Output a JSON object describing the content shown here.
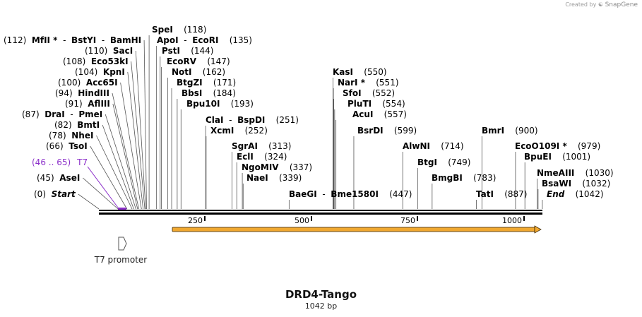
{
  "credit": {
    "prefix": "Created by",
    "brand": "SnapGene"
  },
  "map": {
    "name": "DRD4-Tango",
    "length": "1042 bp",
    "length_bp": 1042
  },
  "ticks": [
    "250",
    "500",
    "750",
    "1000"
  ],
  "feature": {
    "range": "(46 .. 65)",
    "name": "T7",
    "color": "#8b2fc9"
  },
  "promoter": {
    "label": "T7 promoter"
  },
  "orf_color": "#f0a830",
  "sites": [
    {
      "pos": "(112)",
      "names": [
        "MfII *",
        "BstYI",
        "BamHI"
      ]
    },
    {
      "pos": "(110)",
      "names": [
        "SacI"
      ]
    },
    {
      "pos": "(108)",
      "names": [
        "Eco53kI"
      ]
    },
    {
      "pos": "(104)",
      "names": [
        "KpnI"
      ]
    },
    {
      "pos": "(100)",
      "names": [
        "Acc65I"
      ]
    },
    {
      "pos": "(94)",
      "names": [
        "HindIII"
      ]
    },
    {
      "pos": "(91)",
      "names": [
        "AflIII"
      ]
    },
    {
      "pos": "(87)",
      "names": [
        "DraI",
        "PmeI"
      ]
    },
    {
      "pos": "(82)",
      "names": [
        "BmtI"
      ]
    },
    {
      "pos": "(78)",
      "names": [
        "NheI"
      ]
    },
    {
      "pos": "(66)",
      "names": [
        "TsoI"
      ]
    },
    {
      "pos": "(45)",
      "names": [
        "AseI"
      ]
    },
    {
      "pos": "(0)",
      "names": [
        "Start"
      ]
    },
    {
      "pos": "(118)",
      "names": [
        "SpeI"
      ]
    },
    {
      "pos": "(135)",
      "names": [
        "ApoI",
        "EcoRI"
      ]
    },
    {
      "pos": "(144)",
      "names": [
        "PstI"
      ]
    },
    {
      "pos": "(147)",
      "names": [
        "EcoRV"
      ]
    },
    {
      "pos": "(162)",
      "names": [
        "NotI"
      ]
    },
    {
      "pos": "(171)",
      "names": [
        "BtgZI"
      ]
    },
    {
      "pos": "(184)",
      "names": [
        "BbsI"
      ]
    },
    {
      "pos": "(193)",
      "names": [
        "Bpu10I"
      ]
    },
    {
      "pos": "(251)",
      "names": [
        "ClaI",
        "BspDI"
      ]
    },
    {
      "pos": "(252)",
      "names": [
        "XcmI"
      ]
    },
    {
      "pos": "(313)",
      "names": [
        "SgrAI"
      ]
    },
    {
      "pos": "(324)",
      "names": [
        "EclI"
      ]
    },
    {
      "pos": "(337)",
      "names": [
        "NgoMIV"
      ]
    },
    {
      "pos": "(339)",
      "names": [
        "NaeI"
      ]
    },
    {
      "pos": "(447)",
      "names": [
        "BaeGI",
        "Bme1580I"
      ]
    },
    {
      "pos": "(550)",
      "names": [
        "KasI"
      ]
    },
    {
      "pos": "(551)",
      "names": [
        "NarI *"
      ]
    },
    {
      "pos": "(552)",
      "names": [
        "SfoI"
      ]
    },
    {
      "pos": "(554)",
      "names": [
        "PluTI"
      ]
    },
    {
      "pos": "(557)",
      "names": [
        "AcuI"
      ]
    },
    {
      "pos": "(599)",
      "names": [
        "BsrDI"
      ]
    },
    {
      "pos": "(714)",
      "names": [
        "AlwNI"
      ]
    },
    {
      "pos": "(749)",
      "names": [
        "BtgI"
      ]
    },
    {
      "pos": "(783)",
      "names": [
        "BmgBI"
      ]
    },
    {
      "pos": "(900)",
      "names": [
        "BmrI"
      ]
    },
    {
      "pos": "(887)",
      "names": [
        "TatI"
      ]
    },
    {
      "pos": "(979)",
      "names": [
        "EcoO109I *"
      ]
    },
    {
      "pos": "(1001)",
      "names": [
        "BpuEI"
      ]
    },
    {
      "pos": "(1030)",
      "names": [
        "NmeAIII"
      ]
    },
    {
      "pos": "(1032)",
      "names": [
        "BsaWI"
      ]
    },
    {
      "pos": "(1042)",
      "names": [
        "End"
      ]
    }
  ]
}
